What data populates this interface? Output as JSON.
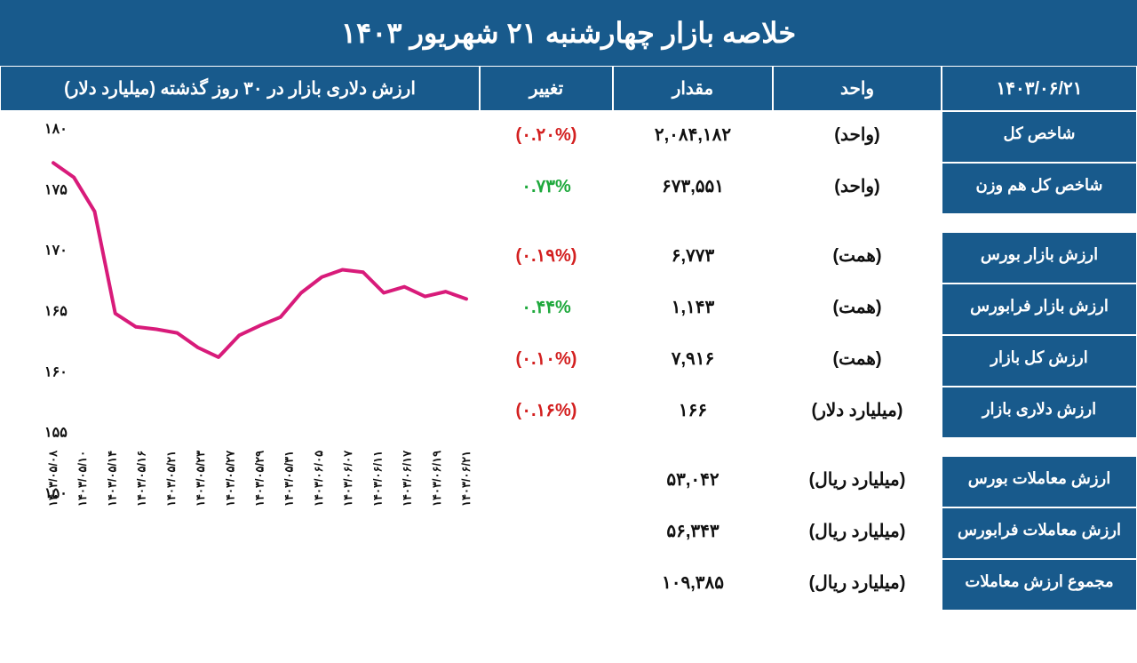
{
  "header_title": "خلاصه بازار   چهارشنبه ۲۱ شهریور ۱۴۰۳",
  "columns": {
    "date": "۱۴۰۳/۰۶/۲۱",
    "unit": "واحد",
    "value": "مقدار",
    "change": "تغییر"
  },
  "rows": [
    {
      "label": "شاخص کل",
      "unit": "(واحد)",
      "value": "۲,۰۸۴,۱۸۲",
      "change": "(۰.۲۰%)",
      "change_class": "neg"
    },
    {
      "label": "شاخص کل هم وزن",
      "unit": "(واحد)",
      "value": "۶۷۳,۵۵۱",
      "change": "۰.۷۳%",
      "change_class": "pos"
    }
  ],
  "rows2": [
    {
      "label": "ارزش بازار بورس",
      "unit": "(همت)",
      "value": "۶,۷۷۳",
      "change": "(۰.۱۹%)",
      "change_class": "neg"
    },
    {
      "label": "ارزش بازار فرابورس",
      "unit": "(همت)",
      "value": "۱,۱۴۳",
      "change": "۰.۴۴%",
      "change_class": "pos"
    },
    {
      "label": "ارزش کل بازار",
      "unit": "(همت)",
      "value": "۷,۹۱۶",
      "change": "(۰.۱۰%)",
      "change_class": "neg"
    },
    {
      "label": "ارزش دلاری بازار",
      "unit": "(میلیارد دلار)",
      "value": "۱۶۶",
      "change": "(۰.۱۶%)",
      "change_class": "neg"
    }
  ],
  "rows3": [
    {
      "label": "ارزش معاملات بورس",
      "unit": "(میلیارد ریال)",
      "value": "۵۳,۰۴۲",
      "change": "",
      "change_class": ""
    },
    {
      "label": "ارزش معاملات فرابورس",
      "unit": "(میلیارد ریال)",
      "value": "۵۶,۳۴۳",
      "change": "",
      "change_class": ""
    },
    {
      "label": "مجموع ارزش معاملات",
      "unit": "(میلیارد ریال)",
      "value": "۱۰۹,۳۸۵",
      "change": "",
      "change_class": ""
    }
  ],
  "chart": {
    "title": "ارزش دلاری بازار در ۳۰ روز گذشته (میلیارد دلار)",
    "type": "line",
    "line_color": "#d81b7a",
    "line_width": 4,
    "background": "#ffffff",
    "ylim": [
      150,
      180
    ],
    "ytick_step": 5,
    "yticks": [
      "۱۵۰",
      "۱۵۵",
      "۱۶۰",
      "۱۶۵",
      "۱۷۰",
      "۱۷۵",
      "۱۸۰"
    ],
    "x_labels": [
      "۱۴۰۳/۰۵/۰۸",
      "۱۴۰۳/۰۵/۱۰",
      "۱۴۰۳/۰۵/۱۴",
      "۱۴۰۳/۰۵/۱۶",
      "۱۴۰۳/۰۵/۲۱",
      "۱۴۰۳/۰۵/۲۳",
      "۱۴۰۳/۰۵/۲۷",
      "۱۴۰۳/۰۵/۲۹",
      "۱۴۰۳/۰۵/۳۱",
      "۱۴۰۳/۰۶/۰۵",
      "۱۴۰۳/۰۶/۰۷",
      "۱۴۰۳/۰۶/۱۱",
      "۱۴۰۳/۰۶/۱۷",
      "۱۴۰۳/۰۶/۱۹",
      "۱۴۰۳/۰۶/۲۱"
    ],
    "y_values": [
      177.2,
      176.0,
      173.2,
      164.8,
      163.7,
      163.5,
      163.2,
      162.0,
      161.2,
      163.0,
      163.8,
      164.5,
      166.5,
      167.8,
      168.4,
      168.2,
      166.5,
      167.0,
      166.2,
      166.6,
      166.0
    ],
    "label_fontsize": 16
  },
  "colors": {
    "header_bg": "#185a8c",
    "header_fg": "#ffffff",
    "neg": "#d32020",
    "pos": "#1fa93d",
    "text": "#111111"
  }
}
